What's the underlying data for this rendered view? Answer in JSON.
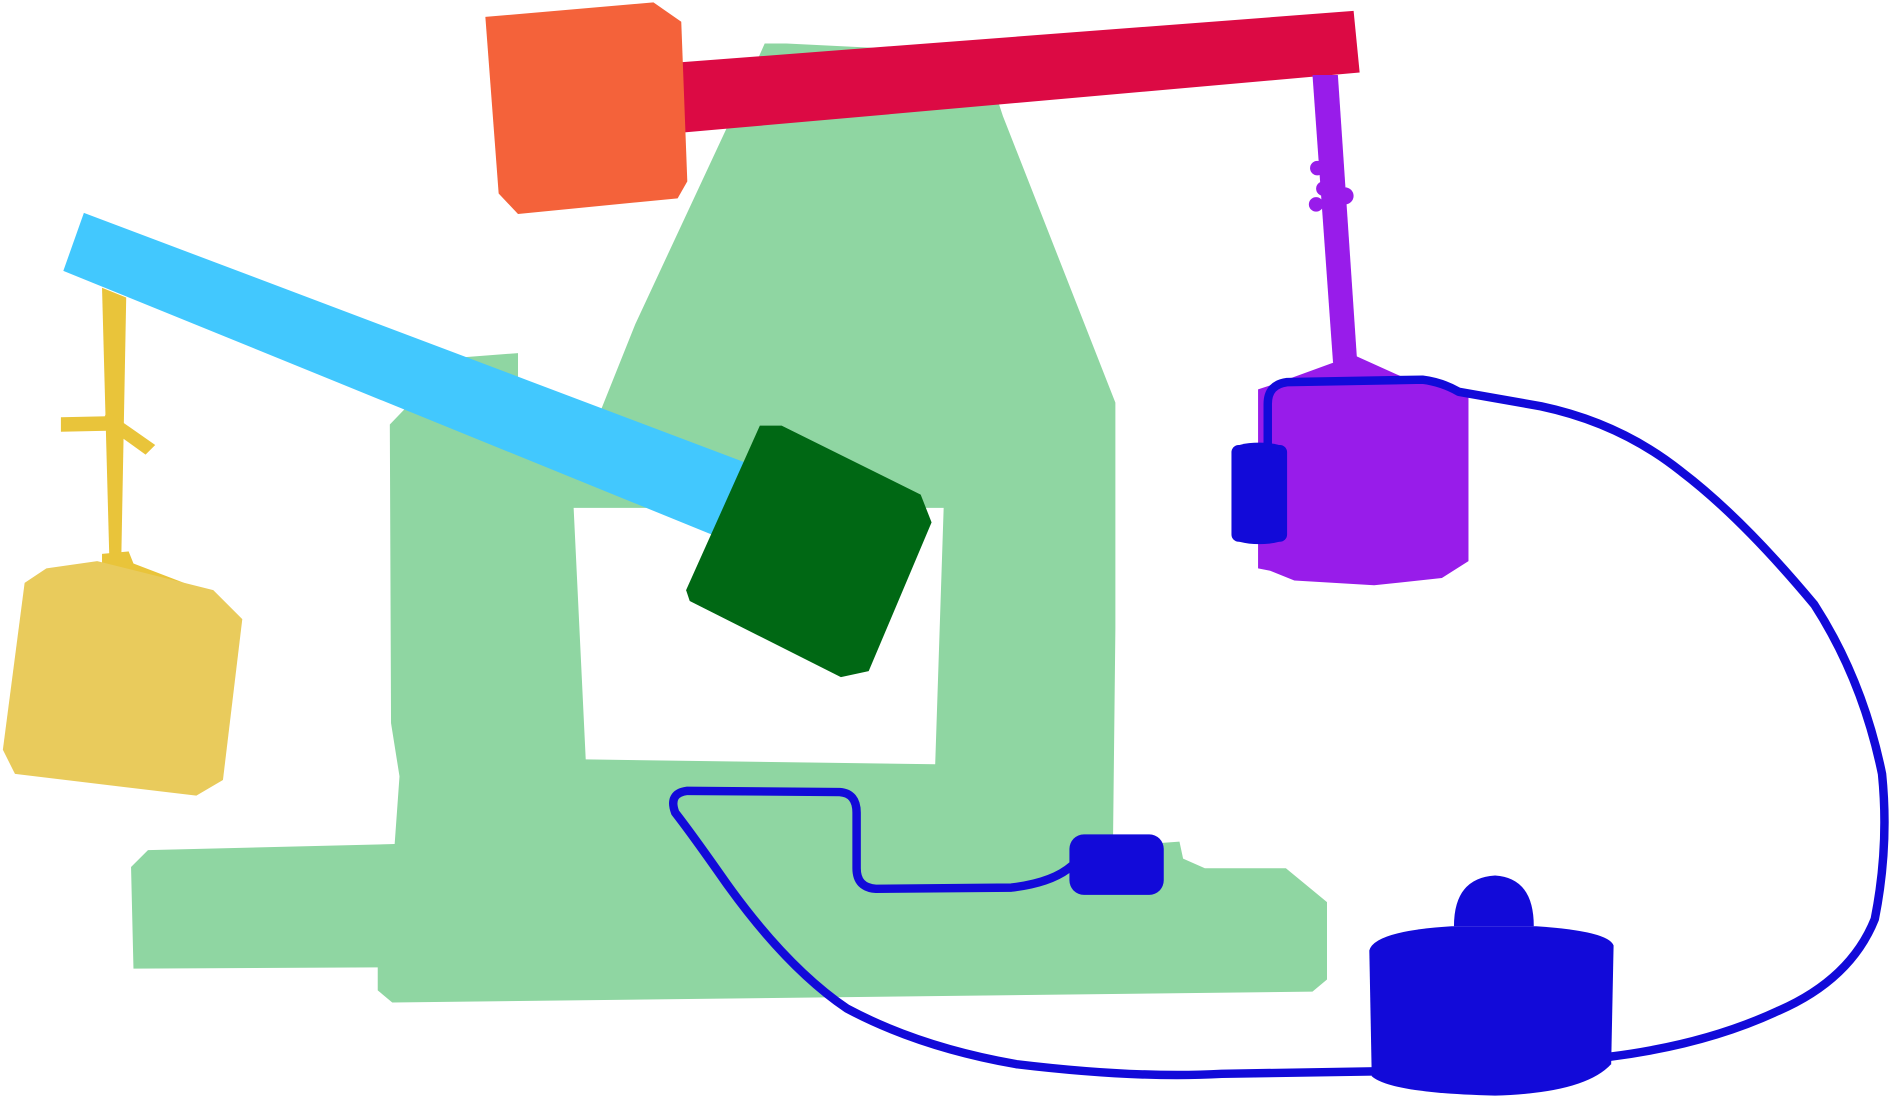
{
  "scene": {
    "colors": {
      "background": "#ffffff",
      "base_frame": "#8fd6a2",
      "red_beam": "#dc0a44",
      "orange_block": "#f4623a",
      "cyan_arm": "#42c8fe",
      "green_block": "#006814",
      "yellow_hook": "#e9c43a",
      "yellow_weight": "#e9cb5c",
      "purple_rod": "#981cea",
      "purple_tank": "#981cea",
      "blue_parts": "#120ad9"
    },
    "parts": [
      "base-frame",
      "red-beam",
      "orange-counterweight",
      "cyan-arm",
      "green-head-block",
      "yellow-hook",
      "yellow-weight",
      "purple-rod",
      "purple-tank",
      "blue-cable",
      "blue-small-connector",
      "blue-tank-connector",
      "blue-motor"
    ]
  }
}
